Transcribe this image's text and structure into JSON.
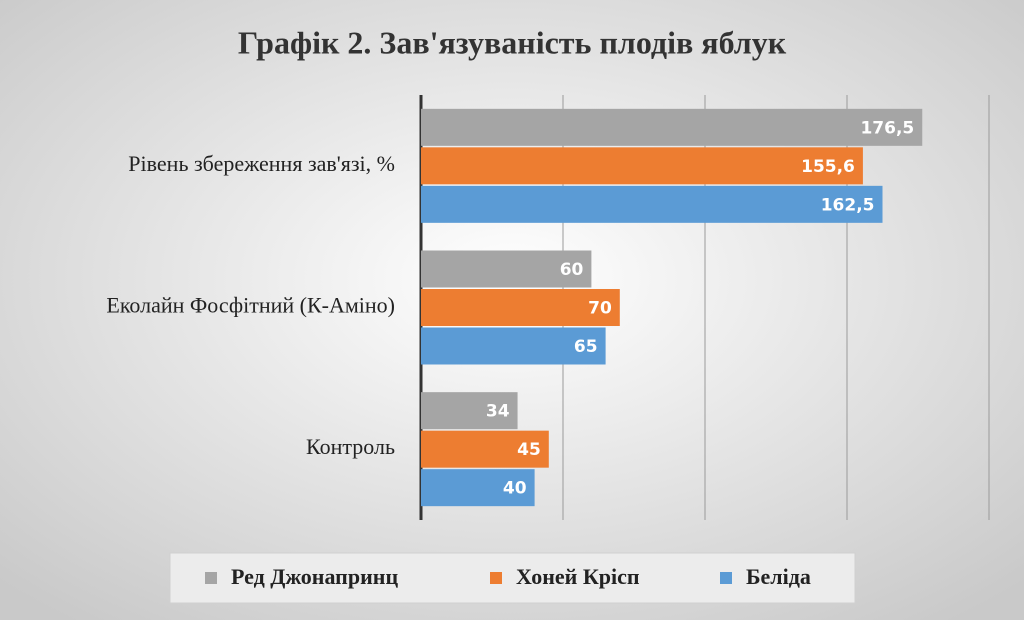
{
  "chart_data": {
    "type": "bar",
    "orientation": "horizontal",
    "title": "Графік 2. Зав'язуваність плодів яблук",
    "categories": [
      "Рівень збереження зав'язі, %",
      "Еколайн Фосфітний (К-Аміно)",
      "Контроль"
    ],
    "series": [
      {
        "name": "Ред Джонапринц",
        "color": "#a5a5a5",
        "values": [
          176.5,
          60,
          34
        ],
        "value_labels": [
          "176,5",
          "60",
          "34"
        ]
      },
      {
        "name": "Хоней Крісп",
        "color": "#ed7d31",
        "values": [
          155.6,
          70,
          45
        ],
        "value_labels": [
          "155,6",
          "70",
          "45"
        ]
      },
      {
        "name": "Беліда",
        "color": "#5b9bd5",
        "values": [
          162.5,
          65,
          40
        ],
        "value_labels": [
          "162,5",
          "65",
          "40"
        ]
      }
    ],
    "xlim": [
      0,
      200
    ],
    "xticks": [
      0,
      50,
      100,
      150,
      200
    ],
    "grid": true,
    "legend": "bottom"
  }
}
